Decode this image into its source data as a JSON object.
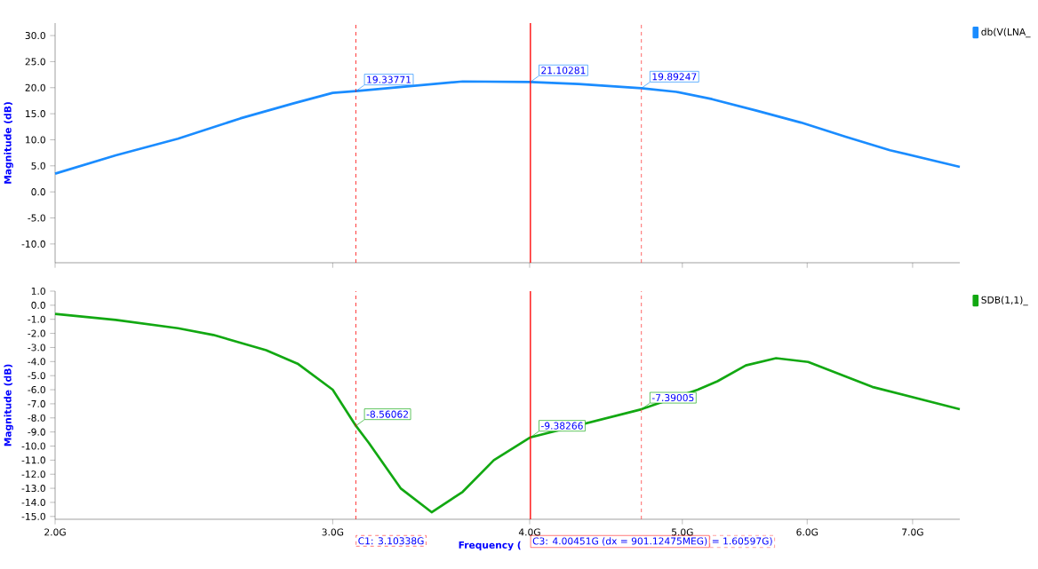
{
  "chart_data": [
    {
      "type": "line",
      "ylabel": "Magnitude (dB)",
      "log": "x",
      "legend": "top right",
      "tick_labels": "y",
      "xlim": [
        2.0,
        7.5
      ],
      "ylim": [
        -13.6,
        32.4
      ],
      "xticks": [
        {
          "value": 2,
          "label": null
        },
        {
          "value": 3,
          "label": null
        },
        {
          "value": 4,
          "label": null
        },
        {
          "value": 5,
          "label": null
        },
        {
          "value": 6,
          "label": null
        },
        {
          "value": 7,
          "label": null
        }
      ],
      "yticks": [
        {
          "value": 30,
          "label": "30.0"
        },
        {
          "value": 25,
          "label": "25.0"
        },
        {
          "value": 20,
          "label": "20.0"
        },
        {
          "value": 15,
          "label": "15.0"
        },
        {
          "value": 10,
          "label": "10.0"
        },
        {
          "value": 5,
          "label": "5.0"
        },
        {
          "value": 0,
          "label": "0.0"
        },
        {
          "value": -5,
          "label": "-5.0"
        },
        {
          "value": -10,
          "label": "-10.0"
        }
      ],
      "series": [
        {
          "name": "db(V(LNA_",
          "color": "#1a8cff",
          "x": [
            2.0,
            2.185,
            2.393,
            2.621,
            2.834,
            3.0,
            3.10338,
            3.628,
            4.00451,
            4.296,
            4.70935,
            4.957,
            5.222,
            5.572,
            5.947,
            6.346,
            6.772,
            7.5
          ],
          "values": [
            3.5,
            7.0,
            10.2,
            14.1,
            17.0,
            19.0,
            19.33771,
            21.2,
            21.10281,
            20.7,
            19.89247,
            19.2,
            17.8,
            15.6,
            13.3,
            10.6,
            8.0,
            4.8
          ]
        }
      ],
      "ref_lines": [
        {
          "axis": "x",
          "value": 3.10338,
          "color": "#ff0000",
          "line_style": "dashed"
        },
        {
          "axis": "x",
          "value": 4.00451,
          "color": "#ff0000",
          "line_style": "solid"
        },
        {
          "axis": "x",
          "value": 4.70935,
          "color": "#ff4040",
          "line_style": "dashed"
        }
      ],
      "annotations": [
        {
          "text": "19.33771",
          "x": 3.10338,
          "y": 19.33771
        },
        {
          "text": "21.10281",
          "x": 4.00451,
          "y": 21.10281
        },
        {
          "text": "19.89247",
          "x": 4.70935,
          "y": 19.89247
        }
      ]
    },
    {
      "type": "line",
      "xlabel": "Frequency (",
      "ylabel": "Magnitude (dB)",
      "log": "x",
      "legend": "top right",
      "xlim": [
        2.0,
        7.5
      ],
      "ylim": [
        -15.2,
        1.0
      ],
      "xticks": [
        {
          "value": 2,
          "label": "2.0G"
        },
        {
          "value": 3,
          "label": "3.0G"
        },
        {
          "value": 4,
          "label": "4.0G"
        },
        {
          "value": 5,
          "label": "5.0G"
        },
        {
          "value": 6,
          "label": "6.0G"
        },
        {
          "value": 7,
          "label": "7.0G"
        }
      ],
      "yticks": [
        {
          "value": 1,
          "label": "1.0"
        },
        {
          "value": 0,
          "label": "0.0"
        },
        {
          "value": -1,
          "label": "-1.0"
        },
        {
          "value": -2,
          "label": "-2.0"
        },
        {
          "value": -3,
          "label": "-3.0"
        },
        {
          "value": -4,
          "label": "-4.0"
        },
        {
          "value": -5,
          "label": "-5.0"
        },
        {
          "value": -6,
          "label": "-6.0"
        },
        {
          "value": -7,
          "label": "-7.0"
        },
        {
          "value": -8,
          "label": "-8.0"
        },
        {
          "value": -9,
          "label": "-9.0"
        },
        {
          "value": -10,
          "label": "-10.0"
        },
        {
          "value": -11,
          "label": "-11.0"
        },
        {
          "value": -12,
          "label": "-12.0"
        },
        {
          "value": -13,
          "label": "-13.0"
        },
        {
          "value": -14,
          "label": "-14.0"
        },
        {
          "value": -15,
          "label": "-15.0"
        }
      ],
      "series": [
        {
          "name": "SDB(1,1)_",
          "color": "#12a812",
          "x": [
            2.0,
            2.185,
            2.393,
            2.52,
            2.722,
            2.85,
            3.0,
            3.10338,
            3.163,
            3.313,
            3.467,
            3.628,
            3.797,
            4.00451,
            4.70935,
            5.114,
            5.263,
            5.486,
            5.734,
            6.009,
            6.599,
            7.5
          ],
          "values": [
            -0.62,
            -1.04,
            -1.63,
            -2.11,
            -3.19,
            -4.15,
            -6.0,
            -8.56062,
            -9.78,
            -13.0,
            -14.7,
            -13.25,
            -11.0,
            -9.38266,
            -7.39005,
            -6.0,
            -5.4,
            -4.27,
            -3.76,
            -4.03,
            -5.8,
            -7.38
          ]
        }
      ],
      "ref_lines": [
        {
          "axis": "x",
          "value": 3.10338,
          "color": "#ff0000",
          "line_style": "dashed",
          "label": "C1: 3.10338G"
        },
        {
          "axis": "x",
          "value": 4.00451,
          "color": "#ff0000",
          "line_style": "solid",
          "label": "C3: 4.00451G (dx = 901.12475MEG)"
        },
        {
          "axis": "x",
          "value": 4.70935,
          "color": "#ff4040",
          "line_style": "dashed"
        }
      ],
      "annotations": [
        "= 1.60597G)",
        {
          "text": "-8.56062",
          "x": 3.10338,
          "y": -8.56062
        },
        {
          "text": "-9.38266",
          "x": 4.00451,
          "y": -9.38266
        },
        {
          "text": "-7.39005",
          "x": 4.70935,
          "y": -7.39005
        }
      ]
    }
  ]
}
